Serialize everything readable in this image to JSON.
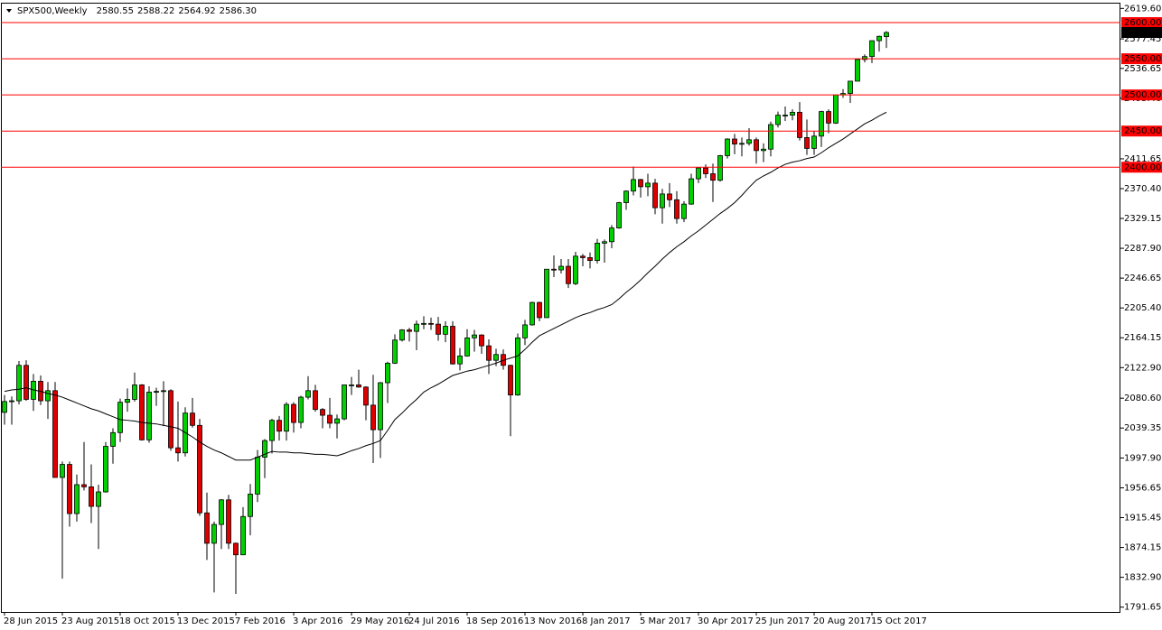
{
  "chart_data": {
    "type": "candlestick",
    "title": "SPX500,Weekly",
    "last_bar_labels": [
      "2580.55",
      "2588.22",
      "2564.92",
      "2586.30"
    ],
    "categories": [
      "28 Jun 2015",
      null,
      null,
      null,
      null,
      null,
      null,
      null,
      "23 Aug 2015",
      null,
      null,
      null,
      null,
      null,
      null,
      null,
      "18 Oct 2015",
      null,
      null,
      null,
      null,
      null,
      null,
      null,
      "13 Dec 2015",
      null,
      null,
      null,
      null,
      null,
      null,
      null,
      "7 Feb 2016",
      null,
      null,
      null,
      null,
      null,
      null,
      null,
      "3 Apr 2016",
      null,
      null,
      null,
      null,
      null,
      null,
      null,
      "29 May 2016",
      null,
      null,
      null,
      null,
      null,
      null,
      null,
      "24 Jul 2016",
      null,
      null,
      null,
      null,
      null,
      null,
      null,
      "18 Sep 2016",
      null,
      null,
      null,
      null,
      null,
      null,
      null,
      "13 Nov 2016",
      null,
      null,
      null,
      null,
      null,
      null,
      null,
      "8 Jan 2017",
      null,
      null,
      null,
      null,
      null,
      null,
      null,
      "5 Mar 2017",
      null,
      null,
      null,
      null,
      null,
      null,
      null,
      "30 Apr 2017",
      null,
      null,
      null,
      null,
      null,
      null,
      null,
      "25 Jun 2017",
      null,
      null,
      null,
      null,
      null,
      null,
      null,
      "20 Aug 2017",
      null,
      null,
      null,
      null,
      null,
      null,
      null,
      "15 Oct 2017",
      null,
      null
    ],
    "open": [
      2061,
      2076,
      2077,
      2126,
      2079,
      2104,
      2077,
      2091,
      1971,
      1989,
      1921,
      1961,
      1958,
      1931,
      1951,
      2014,
      2033,
      2075,
      2079,
      2099,
      2023,
      2089,
      2090,
      2091,
      2012,
      2005,
      2060,
      2043,
      1922,
      1880,
      1906,
      1940,
      1880,
      1864,
      1917,
      1948,
      1999,
      2022,
      2050,
      2035,
      2072,
      2047,
      2082,
      2091,
      2065,
      2057,
      2046,
      2052,
      2099,
      2099,
      2096,
      2071,
      2037,
      2102,
      2129,
      2161,
      2175,
      2173,
      2183,
      2184,
      2183,
      2169,
      2180,
      2128,
      2139,
      2164,
      2168,
      2153,
      2133,
      2141,
      2126,
      2085,
      2164,
      2182,
      2213,
      2192,
      2259,
      2258,
      2263,
      2239,
      2277,
      2275,
      2271,
      2295,
      2297,
      2316,
      2351,
      2367,
      2383,
      2373,
      2378,
      2344,
      2363,
      2355,
      2329,
      2349,
      2384,
      2399,
      2391,
      2382,
      2416,
      2439,
      2432,
      2433,
      2438,
      2423,
      2425,
      2459,
      2472,
      2472,
      2476,
      2441,
      2426,
      2443,
      2477,
      2461,
      2500,
      2502,
      2519,
      2549,
      2553,
      2575,
      2580.55
    ],
    "high": [
      2085,
      2083,
      2132,
      2133,
      2114,
      2112,
      2103,
      2103,
      1993,
      1993,
      1975,
      2020,
      1989,
      1961,
      2020,
      2039,
      2080,
      2094,
      2116,
      2100,
      2097,
      2095,
      2104,
      2093,
      2076,
      2068,
      2081,
      2052,
      1950,
      1910,
      1941,
      1947,
      1881,
      1930,
      1962,
      2009,
      2024,
      2052,
      2056,
      2075,
      2075,
      2084,
      2111,
      2099,
      2067,
      2081,
      2058,
      2099,
      2110,
      2120,
      2097,
      2113,
      2103,
      2131,
      2169,
      2176,
      2178,
      2188,
      2194,
      2192,
      2193,
      2187,
      2187,
      2150,
      2176,
      2175,
      2169,
      2162,
      2149,
      2148,
      2127,
      2170,
      2189,
      2214,
      2214,
      2259,
      2278,
      2273,
      2273,
      2283,
      2280,
      2282,
      2301,
      2300,
      2320,
      2352,
      2368,
      2401,
      2384,
      2391,
      2384,
      2370,
      2378,
      2367,
      2353,
      2391,
      2400,
      2404,
      2405,
      2417,
      2440,
      2446,
      2441,
      2454,
      2441,
      2433,
      2463,
      2477,
      2484,
      2480,
      2490,
      2466,
      2450,
      2478,
      2480,
      2500,
      2508,
      2519,
      2549,
      2556,
      2575,
      2582,
      2588.22
    ],
    "low": [
      2044,
      2044,
      2072,
      2077,
      2063,
      2071,
      2052,
      1971,
      1831,
      1903,
      1910,
      1953,
      1908,
      1872,
      1950,
      1990,
      2020,
      2062,
      2076,
      2022,
      2019,
      2070,
      2042,
      2008,
      1993,
      2000,
      2040,
      1918,
      1857,
      1812,
      1872,
      1872,
      1810,
      1864,
      1891,
      1937,
      1970,
      2004,
      2022,
      2022,
      2033,
      2039,
      2079,
      2062,
      2039,
      2039,
      2025,
      2050,
      2085,
      2095,
      2050,
      1991,
      1998,
      2074,
      2128,
      2159,
      2159,
      2147,
      2176,
      2175,
      2160,
      2158,
      2127,
      2119,
      2138,
      2145,
      2142,
      2114,
      2125,
      2120,
      2028,
      2084,
      2154,
      2181,
      2187,
      2192,
      2248,
      2253,
      2233,
      2237,
      2263,
      2260,
      2267,
      2268,
      2288,
      2315,
      2341,
      2361,
      2358,
      2360,
      2335,
      2322,
      2345,
      2322,
      2324,
      2348,
      2378,
      2385,
      2352,
      2380,
      2412,
      2418,
      2415,
      2430,
      2405,
      2407,
      2415,
      2455,
      2464,
      2465,
      2437,
      2417,
      2417,
      2428,
      2447,
      2460,
      2496,
      2489,
      2519,
      2545,
      2544,
      2560,
      2564.92
    ],
    "close": [
      2076,
      2077,
      2126,
      2079,
      2104,
      2077,
      2091,
      1971,
      1989,
      1921,
      1961,
      1958,
      1931,
      1951,
      2014,
      2033,
      2075,
      2079,
      2099,
      2023,
      2089,
      2090,
      2091,
      2012,
      2005,
      2060,
      2043,
      1922,
      1880,
      1906,
      1940,
      1880,
      1864,
      1917,
      1948,
      1999,
      2022,
      2050,
      2035,
      2072,
      2047,
      2082,
      2091,
      2065,
      2057,
      2046,
      2052,
      2099,
      2099,
      2096,
      2071,
      2037,
      2102,
      2129,
      2161,
      2175,
      2173,
      2183,
      2184,
      2183,
      2169,
      2180,
      2128,
      2139,
      2164,
      2168,
      2153,
      2133,
      2141,
      2126,
      2085,
      2164,
      2182,
      2213,
      2192,
      2259,
      2258,
      2263,
      2239,
      2277,
      2275,
      2271,
      2295,
      2297,
      2316,
      2351,
      2367,
      2383,
      2373,
      2378,
      2344,
      2363,
      2355,
      2329,
      2349,
      2384,
      2399,
      2391,
      2382,
      2416,
      2439,
      2432,
      2433,
      2438,
      2423,
      2425,
      2459,
      2472,
      2472,
      2476,
      2441,
      2426,
      2443,
      2477,
      2461,
      2500,
      2502,
      2519,
      2549,
      2553,
      2575,
      2581,
      2586.3
    ],
    "up_color": "#00d000",
    "down_color": "#dd0000",
    "moving_average": {
      "color": "#000000",
      "values": [
        2090,
        2092,
        2093,
        2095,
        2092,
        2090,
        2087,
        2085,
        2082,
        2078,
        2074,
        2070,
        2066,
        2063,
        2059,
        2055,
        2051,
        2050,
        2049,
        2047,
        2046,
        2045,
        2043,
        2041,
        2039,
        2033,
        2027,
        2020,
        2014,
        2009,
        2005,
        2000,
        1995,
        1995,
        1995,
        1999,
        2003,
        2007,
        2006,
        2006,
        2005,
        2005,
        2004,
        2003,
        2003,
        2002,
        2001,
        2004,
        2008,
        2011,
        2015,
        2018,
        2022,
        2036,
        2051,
        2060,
        2070,
        2079,
        2089,
        2095,
        2100,
        2106,
        2112,
        2115,
        2118,
        2120,
        2123,
        2126,
        2129,
        2133,
        2136,
        2139,
        2148,
        2158,
        2167,
        2172,
        2177,
        2182,
        2187,
        2192,
        2196,
        2199,
        2203,
        2206,
        2210,
        2218,
        2227,
        2235,
        2244,
        2254,
        2263,
        2273,
        2282,
        2290,
        2297,
        2305,
        2312,
        2320,
        2328,
        2336,
        2343,
        2351,
        2361,
        2372,
        2382,
        2388,
        2393,
        2399,
        2404,
        2407,
        2409,
        2412,
        2414,
        2420,
        2427,
        2433,
        2439,
        2446,
        2453,
        2460,
        2465,
        2471,
        2476
      ]
    },
    "levels": [
      {
        "value": 2600,
        "label": "2600.00"
      },
      {
        "value": 2550,
        "label": "2550.00"
      },
      {
        "value": 2500,
        "label": "2500.00"
      },
      {
        "value": 2450,
        "label": "2450.00"
      },
      {
        "value": 2400,
        "label": "2400.00"
      }
    ],
    "level_color": "#ff0000",
    "ylim": [
      1785,
      2626.25
    ],
    "yticks": [
      {
        "value": 2619.6,
        "label": "2619.60"
      },
      {
        "value": 2577.45,
        "label": "2577.45"
      },
      {
        "value": 2536.65,
        "label": "2536.65"
      },
      {
        "value": 2495.4,
        "label": "2495.40"
      },
      {
        "value": 2411.65,
        "label": "2411.65"
      },
      {
        "value": 2370.4,
        "label": "2370.40"
      },
      {
        "value": 2329.15,
        "label": "2329.15"
      },
      {
        "value": 2287.9,
        "label": "2287.90"
      },
      {
        "value": 2246.65,
        "label": "2246.65"
      },
      {
        "value": 2205.4,
        "label": "2205.40"
      },
      {
        "value": 2164.15,
        "label": "2164.15"
      },
      {
        "value": 2122.9,
        "label": "2122.90"
      },
      {
        "value": 2080.6,
        "label": "2080.60"
      },
      {
        "value": 2039.35,
        "label": "2039.35"
      },
      {
        "value": 1997.9,
        "label": "1997.90"
      },
      {
        "value": 1956.65,
        "label": "1956.65"
      },
      {
        "value": 1915.45,
        "label": "1915.45"
      },
      {
        "value": 1874.15,
        "label": "1874.15"
      },
      {
        "value": 1832.9,
        "label": "1832.90"
      },
      {
        "value": 1791.65,
        "label": "1791.65"
      }
    ]
  }
}
